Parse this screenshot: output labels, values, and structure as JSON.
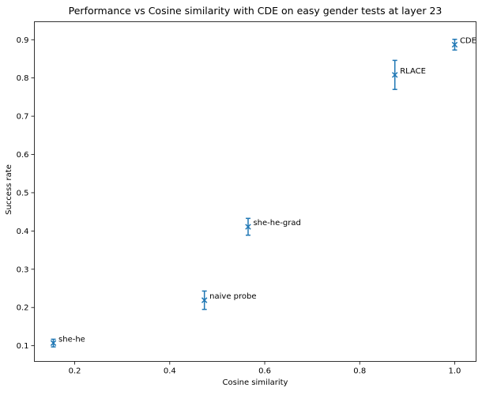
{
  "chart_data": {
    "type": "scatter",
    "title": "Performance vs Cosine similarity with CDE on easy gender tests at layer 23",
    "xlabel": "Cosine similarity",
    "ylabel": "Success rate",
    "xlim": [
      0.115,
      1.045
    ],
    "ylim": [
      0.059,
      0.947
    ],
    "xticks": [
      0.2,
      0.4,
      0.6,
      0.8,
      1.0
    ],
    "xtick_labels": [
      "0.2",
      "0.4",
      "0.6",
      "0.8",
      "1.0"
    ],
    "yticks": [
      0.1,
      0.2,
      0.3,
      0.4,
      0.5,
      0.6,
      0.7,
      0.8,
      0.9
    ],
    "ytick_labels": [
      "0.1",
      "0.2",
      "0.3",
      "0.4",
      "0.5",
      "0.6",
      "0.7",
      "0.8",
      "0.9"
    ],
    "grid": false,
    "marker": "x",
    "color": "#1f77b4",
    "points": [
      {
        "label": "she-he",
        "x": 0.155,
        "y": 0.107,
        "err": 0.01
      },
      {
        "label": "naive probe",
        "x": 0.473,
        "y": 0.219,
        "err": 0.024
      },
      {
        "label": "she-he-grad",
        "x": 0.565,
        "y": 0.411,
        "err": 0.022
      },
      {
        "label": "RLACE",
        "x": 0.874,
        "y": 0.808,
        "err": 0.038
      },
      {
        "label": "CDE",
        "x": 1.0,
        "y": 0.887,
        "err": 0.014
      }
    ]
  }
}
